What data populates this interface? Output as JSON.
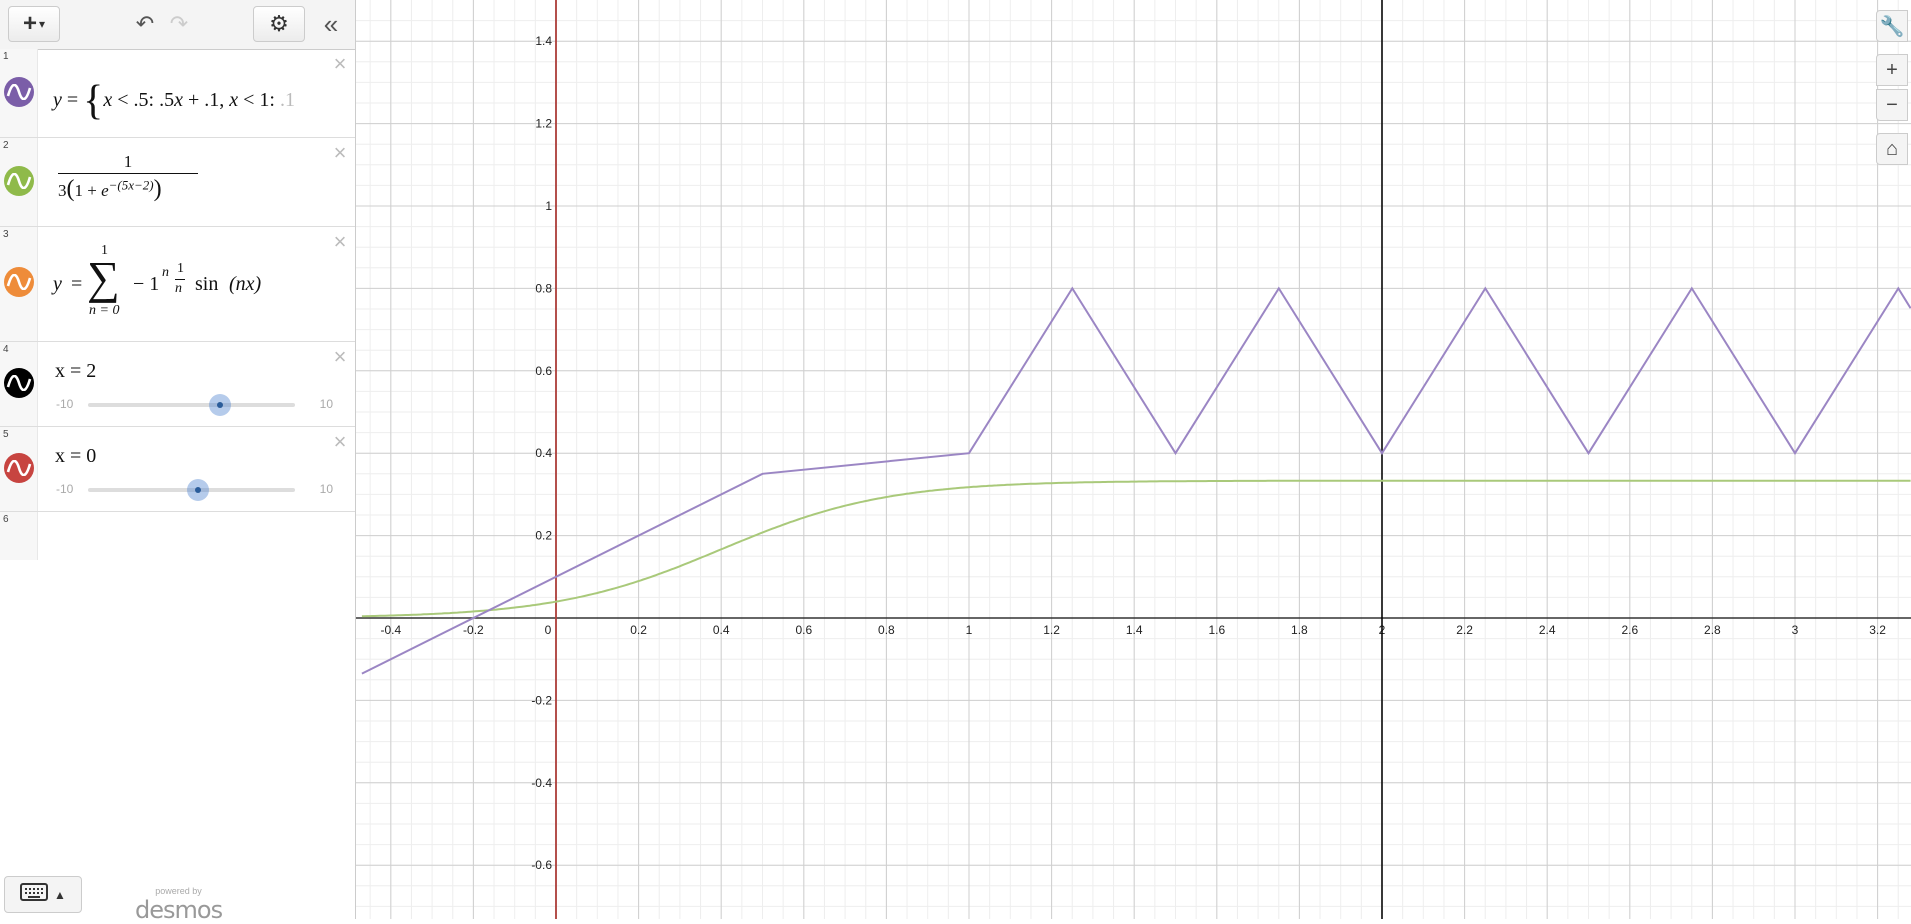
{
  "toolbar": {
    "add": "+",
    "add_caret": "▾"
  },
  "expressions": [
    {
      "index": "1",
      "color": "#7b5ea8"
    },
    {
      "index": "2",
      "color": "#8fba4a",
      "numerator": "1",
      "denominator_lead": "3",
      "one": "1",
      "plus": "+",
      "e": "e",
      "exp": "−(5x−2)"
    },
    {
      "index": "3",
      "color": "#ee8c3a",
      "y": "y",
      "eq": "=",
      "upper": "1",
      "lower": "n = 0",
      "sigma": "∑",
      "term_a": "− 1",
      "term_exp": "n",
      "frac_num": "1",
      "frac_den": "n",
      "sin": "sin",
      "arg": "(nx)"
    },
    {
      "index": "4",
      "color": "#000000",
      "text": "x = 2",
      "slider_min": "-10",
      "slider_max": "10",
      "slider_value": 2
    },
    {
      "index": "5",
      "color": "#c74440",
      "text": "x = 0",
      "slider_min": "-10",
      "slider_max": "10",
      "slider_value": 0
    },
    {
      "index": "6"
    }
  ],
  "powered": {
    "small": "powered by",
    "logo": "desmos"
  },
  "chart_data": {
    "type": "line",
    "xlim": [
      -0.47,
      3.28
    ],
    "ylim": [
      -0.73,
      1.5
    ],
    "x_ticks": [
      "-0.4",
      "-0.2",
      "0",
      "0.2",
      "0.4",
      "0.6",
      "0.8",
      "1",
      "1.2",
      "1.4",
      "1.6",
      "1.8",
      "2",
      "2.2",
      "2.4",
      "2.6",
      "2.8",
      "3",
      "3.2"
    ],
    "y_ticks": [
      "-0.6",
      "-0.4",
      "-0.2",
      "0.2",
      "0.4",
      "0.6",
      "0.8",
      "1",
      "1.2",
      "1.4"
    ],
    "grid": true,
    "series": [
      {
        "color": "#9b86c4",
        "kind": "piecewise",
        "points": [
          [
            -0.47,
            -0.135
          ],
          [
            0.5,
            0.35
          ],
          [
            1,
            0.4
          ],
          [
            1.25,
            0.8
          ],
          [
            1.5,
            0.4
          ],
          [
            1.75,
            0.8
          ],
          [
            2,
            0.4
          ],
          [
            2.25,
            0.8
          ],
          [
            2.5,
            0.4
          ],
          [
            2.75,
            0.8
          ],
          [
            3,
            0.4
          ],
          [
            3.25,
            0.8
          ],
          [
            3.28,
            0.752
          ]
        ]
      },
      {
        "color": "#a9c97a",
        "kind": "logistic"
      }
    ],
    "vertical_lines": [
      {
        "x": 2,
        "color": "#000000"
      },
      {
        "x": 0,
        "color": "#c74440"
      }
    ]
  }
}
